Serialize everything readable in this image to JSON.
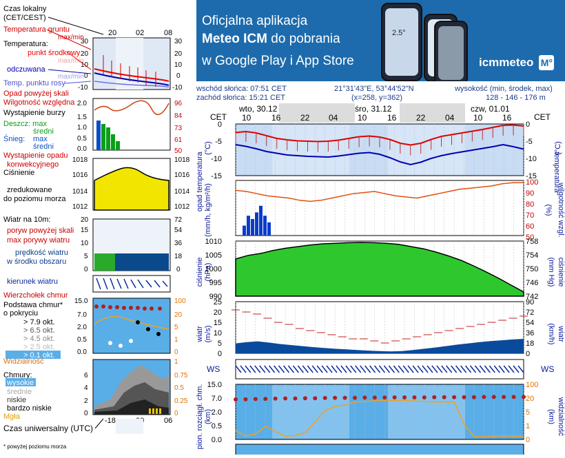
{
  "banner": {
    "line1": "Oficjalna aplikacja",
    "line2_bold": "Meteo ICM",
    "line2_rest": " do pobrania",
    "line3": "w Google Play i App Store",
    "logo": "icmmeteo",
    "logo_badge": "M°",
    "phone_temp": "2.5°"
  },
  "info": {
    "sunrise": "wschód słońca: 07:51 CET",
    "sunset": "zachód słońca: 15:21 CET",
    "coords": "21°31'43\"E, 53°44'52\"N",
    "grid": "(x=258, y=362)",
    "elevation_label": "wysokość (min, środek, max)",
    "elevation": "128 - 146 - 176 m"
  },
  "legend": {
    "time_local": "Czas lokalny",
    "time_local2": "(CET/CEST)",
    "soil_temp": "Temperatura gruntu",
    "max_min": "max/min",
    "temperature": "Temperatura:",
    "mid_point": "punkt środkowy",
    "max_min2": "max/min",
    "feels_like": "odczuwana",
    "max_min3": "max/min",
    "dew_point": "Temp. punktu rosy",
    "precip_above": "Opad powyżej skali",
    "humidity": "Wilgotność względna",
    "storm": "Wystąpienie burzy",
    "rain": "Deszcz: max",
    "rain_mid": "średni",
    "snow": "Śnieg:",
    "snow_max": "max",
    "snow_mid": "średni",
    "conv": "Wystąpienie opadu",
    "conv2": "konwekcyjnego",
    "pressure1": "Ciśnienie",
    "pressure2": "zredukowane",
    "pressure3": "do poziomu morza",
    "wind_title": "Wiatr na 10m:",
    "gust_above": "poryw powyżej skali",
    "gust_max": "max porywy wiatru",
    "wind_mean": "prędkość wiatru",
    "wind_mean2": "w środku obszaru",
    "wind_dir": "kierunek wiatru",
    "cloud_top": "Wierzchołek chmur",
    "cloud_base": "Podstawa chmur*",
    "cloud_base2": "o pokryciu",
    "okt79": "> 7.9 okt.",
    "okt65": "> 6.5 okt.",
    "okt45": "> 4.5 okt.",
    "okt25": "> 2.5 okt.",
    "okt01": "> 0.1 okt.",
    "visibility": "Widzialność",
    "clouds": "Chmury:",
    "high": "wysokie",
    "mid": "średnie",
    "low": "niskie",
    "very_low": "bardzo niskie",
    "fog": "Mgła",
    "utc": "Czas uniwersalny (UTC)",
    "footnote": "* powyżej poziomu morza",
    "top_ticks": [
      "20",
      "02",
      "08"
    ],
    "bottom_ticks": [
      "-18",
      "00",
      "06"
    ]
  },
  "main": {
    "cet": "CET",
    "days": [
      "wto, 30.12",
      "śro, 31.12",
      "czw, 01.01"
    ],
    "hours": [
      "10",
      "16",
      "22",
      "04",
      "10",
      "16",
      "22",
      "04",
      "10",
      "16"
    ],
    "temp_label": "temperatura",
    "temp_unit": "(°C)",
    "precip_label": "opad",
    "precip_unit": "(mm/h, kg/m²/h)",
    "hum_label": "wilgotność wzgl.",
    "hum_unit": "(%)",
    "press_label": "ciśnienie",
    "press_unit": "(hPa)",
    "press_unit2": "(mm Hg)",
    "wind_label": "wiatr",
    "wind_unit": "(m/s)",
    "wind_unit2": "(km/h)",
    "cloud_label": "pion. rozciągł. chm.",
    "cloud_unit": "(km)",
    "vis_label": "widzialność",
    "vis_unit": "(km)",
    "compass_left": "WS",
    "compass_right": "WS"
  },
  "chart_data": [
    {
      "type": "line",
      "title": "temperatura",
      "ylabel": "temperatura (°C)",
      "ylim": [
        -15,
        0
      ],
      "ticks": [
        "0",
        "-5",
        "-10",
        "-15"
      ],
      "series": [
        {
          "name": "max",
          "values": [
            -2.5,
            -2.2,
            -2.6,
            -3.4,
            -4.2,
            -4.6,
            -4.9,
            -5.0,
            -5.1,
            -5.0,
            -4.7,
            -4.2,
            -3.7,
            -3.5,
            -3.8,
            -4.5,
            -5.6,
            -6.1,
            -5.6,
            -4.5,
            -3.6,
            -3.1,
            -2.6,
            -2.1,
            -1.6,
            -1.0,
            -0.4,
            -0.3,
            -0.6
          ]
        },
        {
          "name": "feels",
          "values": [
            -6.0,
            -6.5,
            -7.2,
            -8.0,
            -8.5,
            -9.0,
            -9.2,
            -9.4,
            -9.5,
            -9.6,
            -9.3,
            -8.9,
            -8.5,
            -8.3,
            -8.8,
            -9.8,
            -11.0,
            -11.8,
            -11.1,
            -10.0,
            -9.2,
            -8.6,
            -8.1,
            -7.6,
            -7.1,
            -6.6,
            -6.0,
            -6.6,
            -7.3
          ]
        }
      ]
    },
    {
      "type": "bar",
      "title": "opad / wilgotność wzgl.",
      "ylabel": "opad (mm/h, kg/m²/h)",
      "ylim": [
        0,
        1
      ],
      "ylim_right": [
        50,
        100
      ],
      "ticks_right": [
        "100",
        "90",
        "80",
        "70",
        "60",
        "50"
      ],
      "rain_max": [
        0.3,
        0.6,
        0.5,
        0.7,
        0.9,
        0.6,
        0.4,
        0.0
      ],
      "humidity": [
        91,
        90,
        88,
        86,
        85,
        84,
        82,
        81,
        82,
        84,
        86,
        88,
        89,
        90,
        88,
        86,
        85,
        84,
        86,
        88,
        90,
        92,
        93,
        94,
        95,
        97,
        98,
        98
      ]
    },
    {
      "type": "area",
      "title": "ciśnienie",
      "ylabel": "ciśnienie (hPa)",
      "ylim": [
        990,
        1010
      ],
      "ticks": [
        "1010",
        "1005",
        "1000",
        "995",
        "990"
      ],
      "ticks_right": [
        "758",
        "754",
        "750",
        "746",
        "742"
      ],
      "values": [
        1003.5,
        1004.8,
        1005.5,
        1006.6,
        1007.4,
        1008.0,
        1008.6,
        1009.0,
        1009.2,
        1009.4,
        1009.5,
        1009.4,
        1009.2,
        1008.8,
        1008.0,
        1007.2,
        1006.0,
        1004.6,
        1003.0,
        1001.0,
        998.8,
        996.5,
        994.0,
        991.5
      ]
    },
    {
      "type": "line",
      "title": "wiatr",
      "ylabel": "wiatr (m/s)",
      "ylim": [
        0,
        25
      ],
      "ticks": [
        "25",
        "20",
        "15",
        "10",
        "5",
        "0"
      ],
      "ticks_right": [
        "90",
        "72",
        "54",
        "36",
        "18",
        "0"
      ],
      "gust": [
        21,
        20,
        19,
        17,
        15,
        14,
        12,
        11,
        10,
        9,
        8,
        7,
        7,
        6,
        5,
        6,
        7,
        8,
        9,
        10,
        11,
        12,
        13,
        14,
        15,
        16,
        17,
        18
      ],
      "mean": [
        4.8,
        5.4,
        5.8,
        5.2,
        4.5,
        4.0,
        3.5,
        3.0,
        2.6,
        2.2,
        1.9,
        1.6,
        1.3,
        1.1,
        0.9,
        1.1,
        1.6,
        2.2,
        2.8,
        3.5,
        4.2,
        4.8,
        5.4,
        5.9,
        6.3,
        6.7,
        7.0
      ]
    },
    {
      "type": "line",
      "title": "pion. rozciągł. chm. / widzialność",
      "ylabel": "(km)",
      "ylim": [
        0,
        15
      ],
      "ticks": [
        "15.0",
        "7.0",
        "2.0",
        "0.5",
        "0.0"
      ],
      "ticks_right": [
        "100",
        "20",
        "5",
        "1",
        "0"
      ],
      "cloud_top": [
        7.0,
        7.1,
        7.2,
        7.3,
        7.4,
        7.5,
        7.5,
        7.6,
        7.6,
        7.7,
        7.8,
        7.8,
        7.8,
        7.9,
        7.9,
        7.9,
        8.0,
        8.0,
        8.0,
        8.0,
        8.1,
        8.1,
        8.1,
        8.1,
        8.1,
        8.2,
        8.2,
        8.2,
        8.2,
        8.2
      ],
      "visibility": [
        2.0,
        0.8,
        1.2,
        3.0,
        1.8,
        0.7,
        0.9,
        1.5,
        4.0,
        6.5,
        7.5,
        7.8,
        8.5,
        8.6,
        8.8,
        8.9,
        8.8,
        8.9,
        8.7,
        8.6,
        8.5,
        8.5,
        8.5,
        3.5,
        0.6,
        0.6,
        0.7,
        0.8,
        0.7,
        0.7
      ]
    }
  ]
}
